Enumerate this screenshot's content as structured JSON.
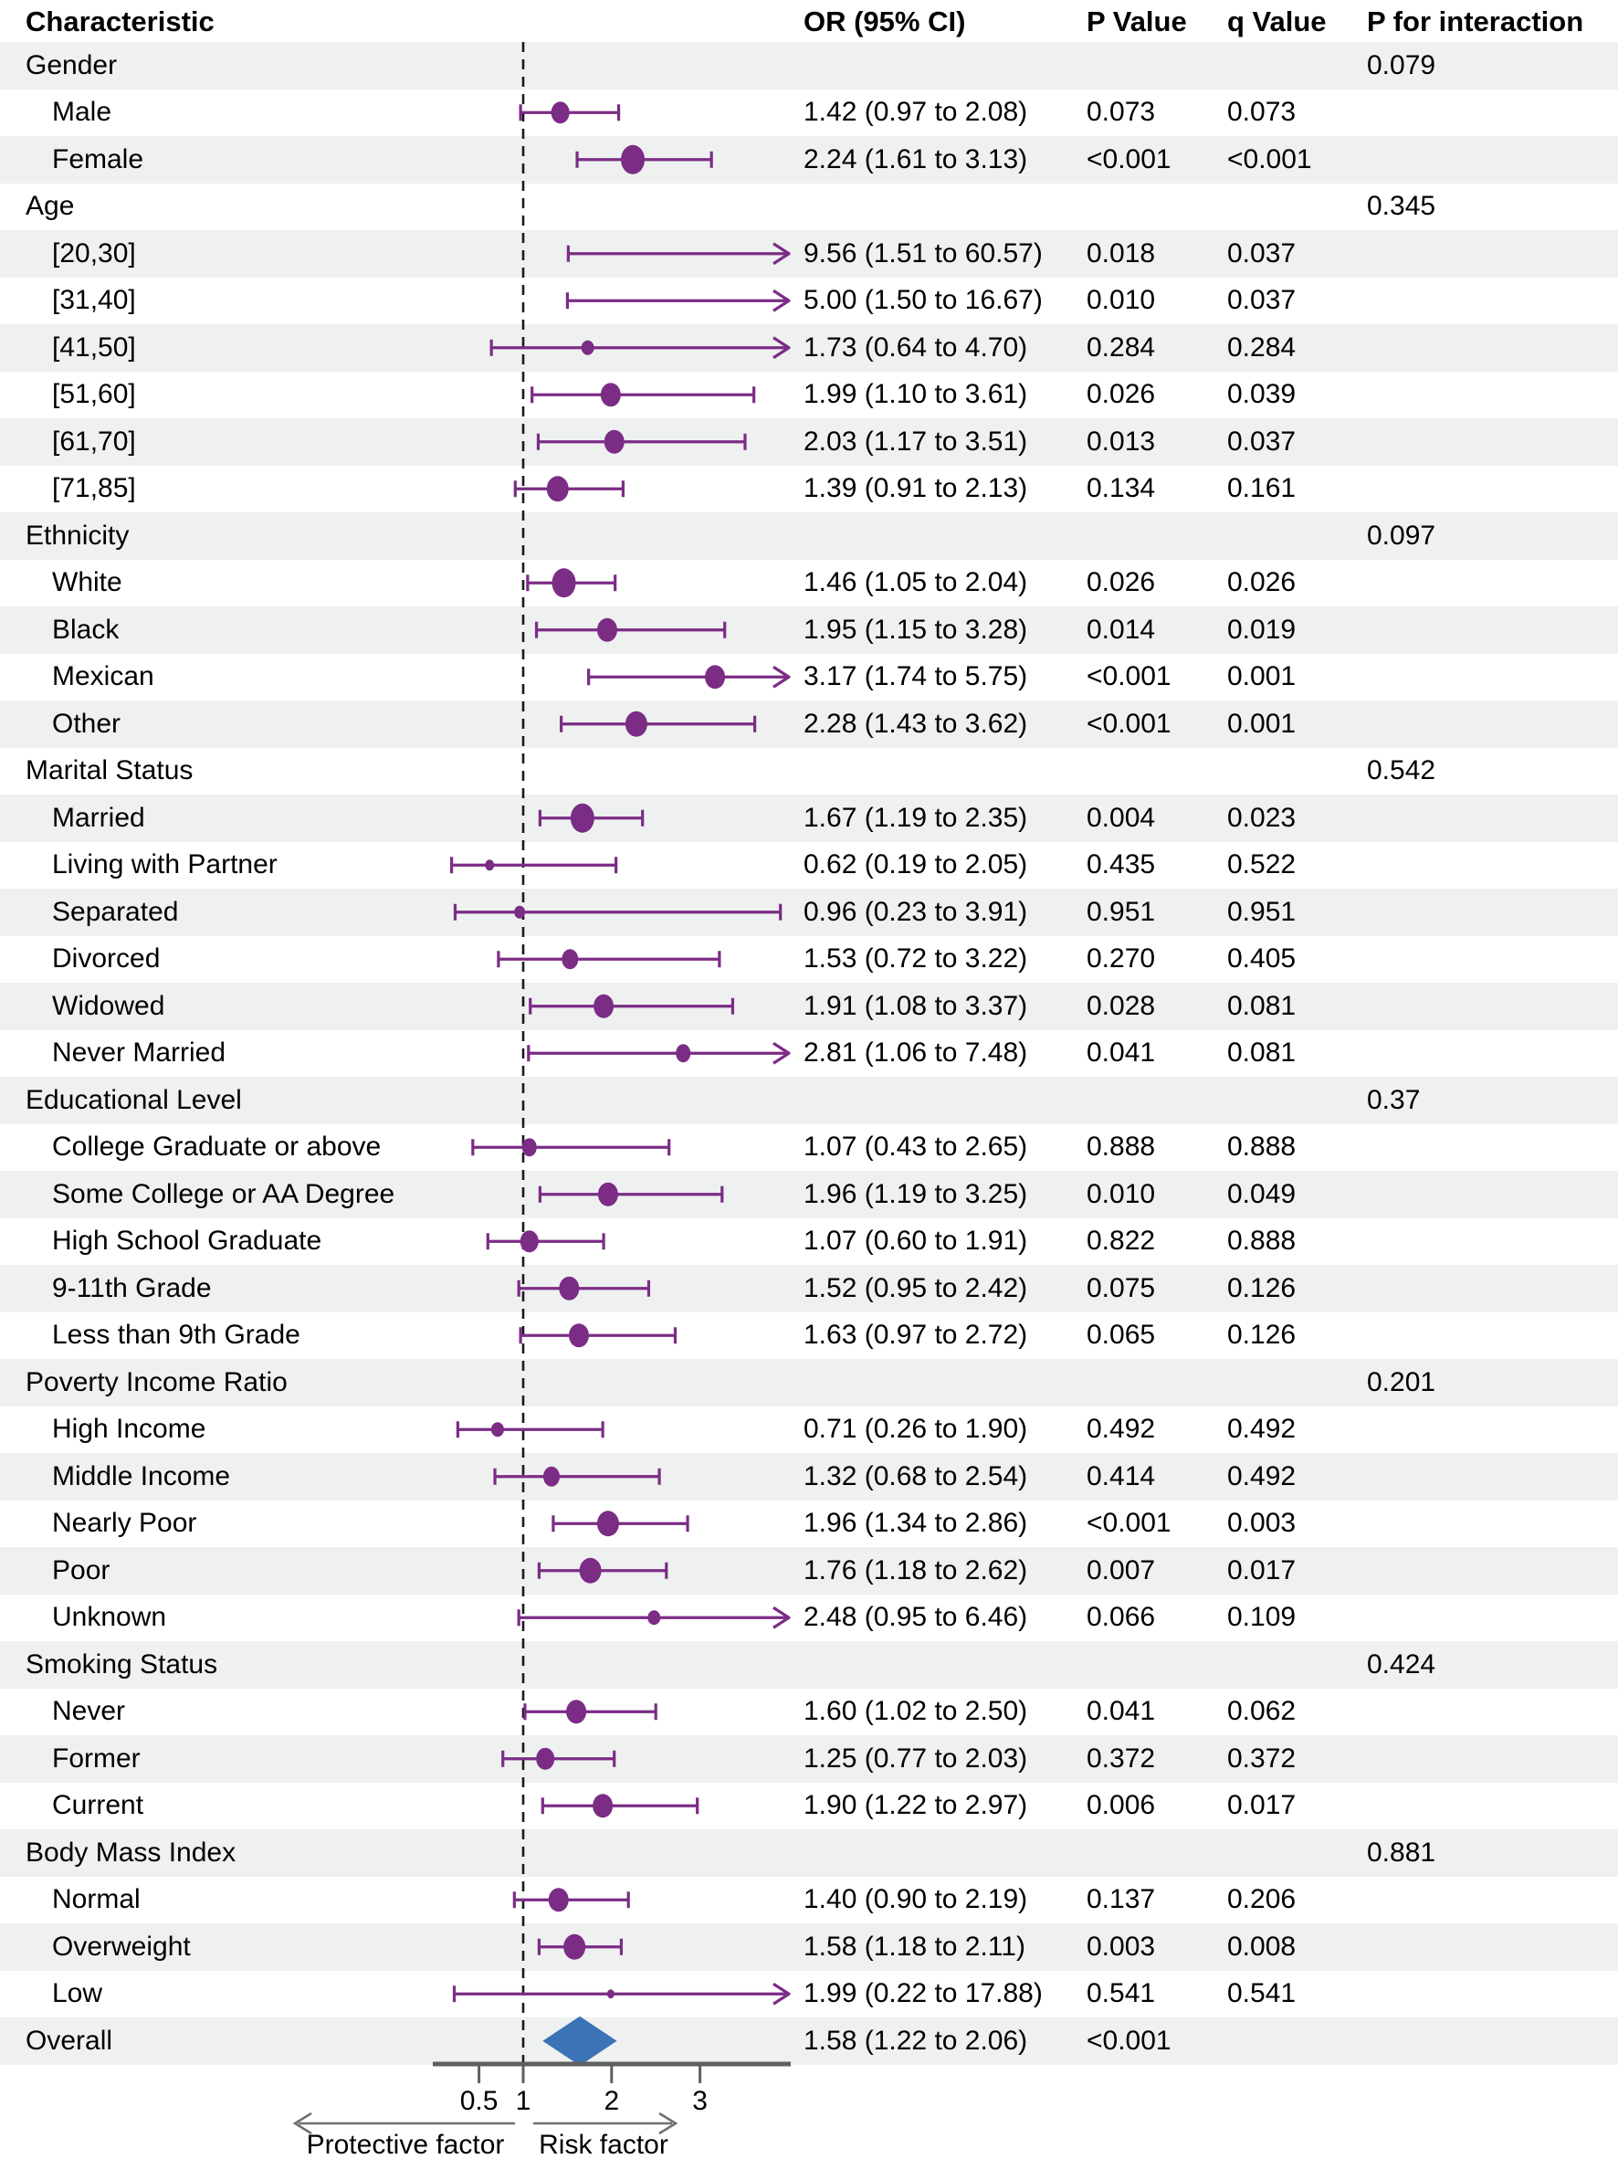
{
  "colors": {
    "stripe": "#eef1f0",
    "marker_purple": "#7b2c85",
    "overall_blue": "#3c73b7",
    "axis_gray": "#5f5f5f",
    "arrow_gray": "#6e6e6e",
    "refline_black": "#1a1a1a",
    "text": "#000000"
  },
  "header": {
    "characteristic": "Characteristic",
    "or": "OR (95% CI)",
    "p": "P Value",
    "q": "q Value",
    "p_interaction": "P for interaction"
  },
  "footer": {
    "protective": "Protective factor",
    "risk": "Risk factor"
  },
  "chart_data": {
    "type": "scatter",
    "subtype": "forest_plot",
    "axis": {
      "scale": "linear",
      "ticks": [
        0.5,
        1,
        2,
        3
      ],
      "range": [
        0.1,
        4.0
      ],
      "refline": 1,
      "clip_or": 4.0,
      "direction_label_left": "Protective factor",
      "direction_label_right": "Risk factor"
    },
    "rows": [
      {
        "level": "group",
        "label": "Gender",
        "p_interaction": "0.079"
      },
      {
        "level": "item",
        "label": "Male",
        "or": 1.42,
        "lo": 0.97,
        "hi": 2.08,
        "or_text": "1.42 (0.97 to 2.08)",
        "p": "0.073",
        "q": "0.073",
        "marker_rx": 10
      },
      {
        "level": "item",
        "label": "Female",
        "or": 2.24,
        "lo": 1.61,
        "hi": 3.13,
        "or_text": "2.24 (1.61 to 3.13)",
        "p": "<0.001",
        "q": "<0.001",
        "marker_rx": 13
      },
      {
        "level": "group",
        "label": "Age",
        "p_interaction": "0.345"
      },
      {
        "level": "item",
        "label": "[20,30]",
        "or": 9.56,
        "lo": 1.51,
        "hi": 60.57,
        "or_text": "9.56 (1.51 to 60.57)",
        "p": "0.018",
        "q": "0.037",
        "marker_rx": 10
      },
      {
        "level": "item",
        "label": "[31,40]",
        "or": 5.0,
        "lo": 1.5,
        "hi": 16.67,
        "or_text": "5.00 (1.50 to 16.67)",
        "p": "0.010",
        "q": "0.037",
        "marker_rx": 10
      },
      {
        "level": "item",
        "label": "[41,50]",
        "or": 1.73,
        "lo": 0.64,
        "hi": 4.7,
        "or_text": "1.73 (0.64 to 4.70)",
        "p": "0.284",
        "q": "0.284",
        "marker_rx": 7
      },
      {
        "level": "item",
        "label": "[51,60]",
        "or": 1.99,
        "lo": 1.1,
        "hi": 3.61,
        "or_text": "1.99 (1.10 to 3.61)",
        "p": "0.026",
        "q": "0.039",
        "marker_rx": 11
      },
      {
        "level": "item",
        "label": "[61,70]",
        "or": 2.03,
        "lo": 1.17,
        "hi": 3.51,
        "or_text": "2.03 (1.17 to 3.51)",
        "p": "0.013",
        "q": "0.037",
        "marker_rx": 11
      },
      {
        "level": "item",
        "label": "[71,85]",
        "or": 1.39,
        "lo": 0.91,
        "hi": 2.13,
        "or_text": "1.39 (0.91 to 2.13)",
        "p": "0.134",
        "q": "0.161",
        "marker_rx": 12
      },
      {
        "level": "group",
        "label": "Ethnicity",
        "p_interaction": "0.097"
      },
      {
        "level": "item",
        "label": "White",
        "or": 1.46,
        "lo": 1.05,
        "hi": 2.04,
        "or_text": "1.46 (1.05 to 2.04)",
        "p": "0.026",
        "q": "0.026",
        "marker_rx": 13
      },
      {
        "level": "item",
        "label": "Black",
        "or": 1.95,
        "lo": 1.15,
        "hi": 3.28,
        "or_text": "1.95 (1.15 to 3.28)",
        "p": "0.014",
        "q": "0.019",
        "marker_rx": 11
      },
      {
        "level": "item",
        "label": "Mexican",
        "or": 3.17,
        "lo": 1.74,
        "hi": 5.75,
        "or_text": "3.17 (1.74 to 5.75)",
        "p": "<0.001",
        "q": "0.001",
        "marker_rx": 11
      },
      {
        "level": "item",
        "label": "Other",
        "or": 2.28,
        "lo": 1.43,
        "hi": 3.62,
        "or_text": "2.28 (1.43 to 3.62)",
        "p": "<0.001",
        "q": "0.001",
        "marker_rx": 12
      },
      {
        "level": "group",
        "label": "Marital Status",
        "p_interaction": "0.542"
      },
      {
        "level": "item",
        "label": "Married",
        "or": 1.67,
        "lo": 1.19,
        "hi": 2.35,
        "or_text": "1.67 (1.19 to 2.35)",
        "p": "0.004",
        "q": "0.023",
        "marker_rx": 13
      },
      {
        "level": "item",
        "label": "Living with Partner",
        "or": 0.62,
        "lo": 0.19,
        "hi": 2.05,
        "or_text": "0.62 (0.19 to 2.05)",
        "p": "0.435",
        "q": "0.522",
        "marker_rx": 5
      },
      {
        "level": "item",
        "label": "Separated",
        "or": 0.96,
        "lo": 0.23,
        "hi": 3.91,
        "or_text": "0.96 (0.23 to 3.91)",
        "p": "0.951",
        "q": "0.951",
        "marker_rx": 6
      },
      {
        "level": "item",
        "label": "Divorced",
        "or": 1.53,
        "lo": 0.72,
        "hi": 3.22,
        "or_text": "1.53 (0.72 to 3.22)",
        "p": "0.270",
        "q": "0.405",
        "marker_rx": 9
      },
      {
        "level": "item",
        "label": "Widowed",
        "or": 1.91,
        "lo": 1.08,
        "hi": 3.37,
        "or_text": "1.91 (1.08 to 3.37)",
        "p": "0.028",
        "q": "0.081",
        "marker_rx": 11
      },
      {
        "level": "item",
        "label": "Never Married",
        "or": 2.81,
        "lo": 1.06,
        "hi": 7.48,
        "or_text": "2.81 (1.06 to 7.48)",
        "p": "0.041",
        "q": "0.081",
        "marker_rx": 8
      },
      {
        "level": "group",
        "label": "Educational Level",
        "p_interaction": "0.37"
      },
      {
        "level": "item",
        "label": "College Graduate or above",
        "or": 1.07,
        "lo": 0.43,
        "hi": 2.65,
        "or_text": "1.07 (0.43 to 2.65)",
        "p": "0.888",
        "q": "0.888",
        "marker_rx": 8
      },
      {
        "level": "item",
        "label": "Some College or AA Degree",
        "or": 1.96,
        "lo": 1.19,
        "hi": 3.25,
        "or_text": "1.96 (1.19 to 3.25)",
        "p": "0.010",
        "q": "0.049",
        "marker_rx": 11
      },
      {
        "level": "item",
        "label": "High School Graduate",
        "or": 1.07,
        "lo": 0.6,
        "hi": 1.91,
        "or_text": "1.07 (0.60 to 1.91)",
        "p": "0.822",
        "q": "0.888",
        "marker_rx": 10
      },
      {
        "level": "item",
        "label": "9-11th Grade",
        "or": 1.52,
        "lo": 0.95,
        "hi": 2.42,
        "or_text": "1.52 (0.95 to 2.42)",
        "p": "0.075",
        "q": "0.126",
        "marker_rx": 11
      },
      {
        "level": "item",
        "label": "Less than 9th Grade",
        "or": 1.63,
        "lo": 0.97,
        "hi": 2.72,
        "or_text": "1.63 (0.97 to 2.72)",
        "p": "0.065",
        "q": "0.126",
        "marker_rx": 11
      },
      {
        "level": "group",
        "label": "Poverty Income Ratio",
        "p_interaction": "0.201"
      },
      {
        "level": "item",
        "label": "High Income",
        "or": 0.71,
        "lo": 0.26,
        "hi": 1.9,
        "or_text": "0.71 (0.26 to 1.90)",
        "p": "0.492",
        "q": "0.492",
        "marker_rx": 7
      },
      {
        "level": "item",
        "label": "Middle Income",
        "or": 1.32,
        "lo": 0.68,
        "hi": 2.54,
        "or_text": "1.32 (0.68 to 2.54)",
        "p": "0.414",
        "q": "0.492",
        "marker_rx": 9
      },
      {
        "level": "item",
        "label": "Nearly Poor",
        "or": 1.96,
        "lo": 1.34,
        "hi": 2.86,
        "or_text": "1.96 (1.34 to 2.86)",
        "p": "<0.001",
        "q": "0.003",
        "marker_rx": 12
      },
      {
        "level": "item",
        "label": "Poor",
        "or": 1.76,
        "lo": 1.18,
        "hi": 2.62,
        "or_text": "1.76 (1.18 to 2.62)",
        "p": "0.007",
        "q": "0.017",
        "marker_rx": 12
      },
      {
        "level": "item",
        "label": "Unknown",
        "or": 2.48,
        "lo": 0.95,
        "hi": 6.46,
        "or_text": "2.48 (0.95 to 6.46)",
        "p": "0.066",
        "q": "0.109",
        "marker_rx": 7
      },
      {
        "level": "group",
        "label": "Smoking Status",
        "p_interaction": "0.424"
      },
      {
        "level": "item",
        "label": "Never",
        "or": 1.6,
        "lo": 1.02,
        "hi": 2.5,
        "or_text": "1.60 (1.02 to 2.50)",
        "p": "0.041",
        "q": "0.062",
        "marker_rx": 11
      },
      {
        "level": "item",
        "label": "Former",
        "or": 1.25,
        "lo": 0.77,
        "hi": 2.03,
        "or_text": "1.25 (0.77 to 2.03)",
        "p": "0.372",
        "q": "0.372",
        "marker_rx": 10
      },
      {
        "level": "item",
        "label": "Current",
        "or": 1.9,
        "lo": 1.22,
        "hi": 2.97,
        "or_text": "1.90 (1.22 to 2.97)",
        "p": "0.006",
        "q": "0.017",
        "marker_rx": 11
      },
      {
        "level": "group",
        "label": "Body Mass Index",
        "p_interaction": "0.881"
      },
      {
        "level": "item",
        "label": "Normal",
        "or": 1.4,
        "lo": 0.9,
        "hi": 2.19,
        "or_text": "1.40 (0.90 to 2.19)",
        "p": "0.137",
        "q": "0.206",
        "marker_rx": 11
      },
      {
        "level": "item",
        "label": "Overweight",
        "or": 1.58,
        "lo": 1.18,
        "hi": 2.11,
        "or_text": "1.58 (1.18 to 2.11)",
        "p": "0.003",
        "q": "0.008",
        "marker_rx": 12
      },
      {
        "level": "item",
        "label": "Low",
        "or": 1.99,
        "lo": 0.22,
        "hi": 17.88,
        "or_text": "1.99 (0.22 to 17.88)",
        "p": "0.541",
        "q": "0.541",
        "marker_rx": 4
      },
      {
        "level": "overall",
        "label": "Overall",
        "or": 1.58,
        "lo": 1.22,
        "hi": 2.06,
        "or_text": "1.58 (1.22 to 2.06)",
        "p": "<0.001"
      }
    ]
  }
}
